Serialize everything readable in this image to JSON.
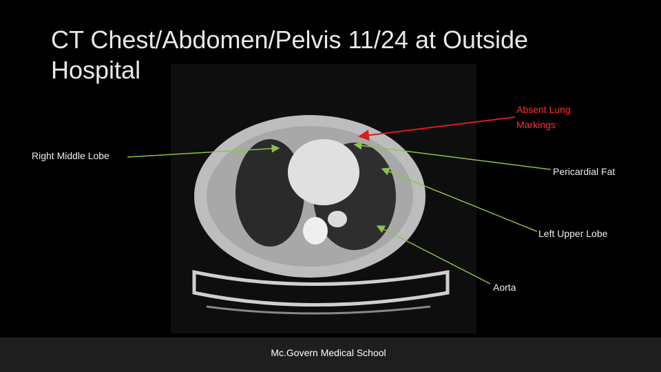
{
  "title": "CT Chest/Abdomen/Pelvis 11/24 at Outside Hospital",
  "annotations": [
    {
      "label": "Absent Lung Markings"
    },
    {
      "label": "Right Middle Lobe"
    },
    {
      "label": "Pericardial Fat"
    },
    {
      "label": "Left Upper Lobe"
    },
    {
      "label": "Aorta"
    }
  ],
  "footer": "Mc.Govern Medical School"
}
